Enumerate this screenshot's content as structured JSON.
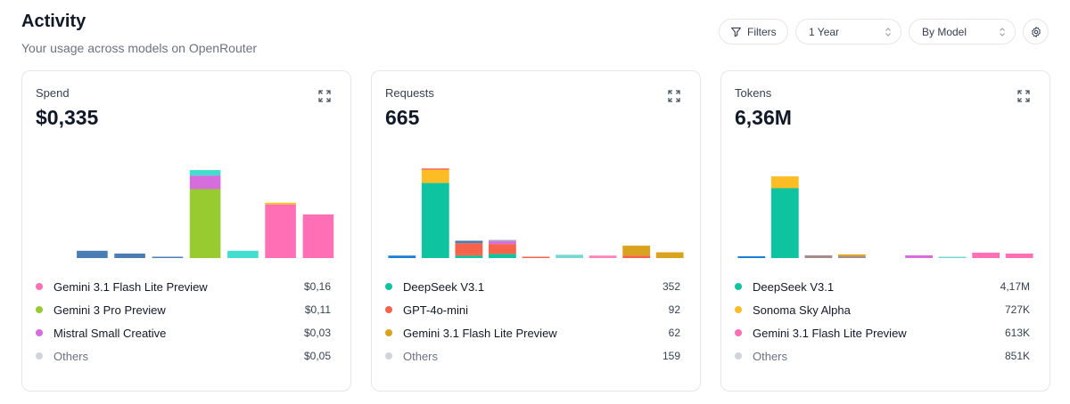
{
  "header": {
    "title": "Activity",
    "subtitle": "Your usage across models on OpenRouter"
  },
  "controls": {
    "filters_label": "Filters",
    "period_value": "1 Year",
    "group_value": "By Model"
  },
  "colors": {
    "gemini_flash_lite": "#ff6fb5",
    "gemini_3_pro": "#98cb2f",
    "mistral_small": "#d56edc",
    "deepseek": "#0ec39f",
    "gpt4o_mini": "#f6624a",
    "sonoma": "#fbbc24",
    "gemini_flash_lite_gold": "#d9a21f",
    "blue": "#4b7db4",
    "teal": "#43ddd0",
    "others": "#d1d5db"
  },
  "cards": [
    {
      "title": "Spend",
      "value": "$0,335",
      "legend": [
        {
          "name": "Gemini 3.1 Flash Lite Preview",
          "value": "$0,16",
          "color": "#ff6fb5"
        },
        {
          "name": "Gemini 3 Pro Preview",
          "value": "$0,11",
          "color": "#98cb2f"
        },
        {
          "name": "Mistral Small Creative",
          "value": "$0,03",
          "color": "#d56edc"
        },
        {
          "name": "Others",
          "value": "$0,05",
          "color": "#d1d5db"
        }
      ],
      "chart_data": {
        "type": "bar",
        "stacked": true,
        "max": 100,
        "bars": [
          [],
          [
            {
              "v": 8,
              "c": "#4b7db4"
            }
          ],
          [
            {
              "v": 5,
              "c": "#4b7db4"
            }
          ],
          [
            {
              "v": 1,
              "c": "#4b7db4"
            }
          ],
          [
            {
              "v": 76,
              "c": "#98cb2f"
            },
            {
              "v": 15,
              "c": "#d56edc"
            },
            {
              "v": 6,
              "c": "#43ddd0"
            }
          ],
          [
            {
              "v": 8,
              "c": "#43ddd0"
            }
          ],
          [
            {
              "v": 59,
              "c": "#ff6fb5"
            },
            {
              "v": 2,
              "c": "#fbbc24"
            }
          ],
          [
            {
              "v": 48,
              "c": "#ff6fb5"
            }
          ]
        ]
      }
    },
    {
      "title": "Requests",
      "value": "665",
      "legend": [
        {
          "name": "DeepSeek V3.1",
          "value": "352",
          "color": "#0ec39f"
        },
        {
          "name": "GPT-4o-mini",
          "value": "92",
          "color": "#f6624a"
        },
        {
          "name": "Gemini 3.1 Flash Lite Preview",
          "value": "62",
          "color": "#d9a21f"
        },
        {
          "name": "Others",
          "value": "159",
          "color": "#d1d5db"
        }
      ],
      "chart_data": {
        "type": "bar",
        "stacked": true,
        "max": 110,
        "bars": [
          [
            {
              "v": 3,
              "c": "#1c7fd6"
            }
          ],
          [
            {
              "v": 91,
              "c": "#0ec39f"
            },
            {
              "v": 16,
              "c": "#fbbc24"
            },
            {
              "v": 1,
              "c": "#f6624a"
            }
          ],
          [
            {
              "v": 3,
              "c": "#0ec39f"
            },
            {
              "v": 2,
              "c": "#f6624a"
            },
            {
              "v": 13,
              "c": "#f6624a"
            },
            {
              "v": 3,
              "c": "#4b7db4"
            }
          ],
          [
            {
              "v": 5,
              "c": "#0ec39f"
            },
            {
              "v": 2,
              "c": "#f6624a"
            },
            {
              "v": 10,
              "c": "#f6624a"
            },
            {
              "v": 3,
              "c": "#d56edc"
            },
            {
              "v": 2,
              "c": "#b0a4c8"
            }
          ],
          [
            {
              "v": 1,
              "c": "#f6624a"
            }
          ],
          [
            {
              "v": 4,
              "c": "#76d8d4"
            }
          ],
          [
            {
              "v": 3,
              "c": "#ff84b8"
            }
          ],
          [
            {
              "v": 3,
              "c": "#f6624a"
            },
            {
              "v": 12,
              "c": "#d9a21f"
            }
          ],
          [
            {
              "v": 7,
              "c": "#d9a21f"
            }
          ]
        ]
      }
    },
    {
      "title": "Tokens",
      "value": "6,36M",
      "legend": [
        {
          "name": "DeepSeek V3.1",
          "value": "4,17M",
          "color": "#0ec39f"
        },
        {
          "name": "Sonoma Sky Alpha",
          "value": "727K",
          "color": "#fbbc24"
        },
        {
          "name": "Gemini 3.1 Flash Lite Preview",
          "value": "613K",
          "color": "#ff6fb5"
        },
        {
          "name": "Others",
          "value": "851K",
          "color": "#d1d5db"
        }
      ],
      "chart_data": {
        "type": "bar",
        "stacked": true,
        "max": 100,
        "bars": [
          [
            {
              "v": 2,
              "c": "#1c7fd6"
            }
          ],
          [
            {
              "v": 77,
              "c": "#0ec39f"
            },
            {
              "v": 13,
              "c": "#fbbc24"
            }
          ],
          [
            {
              "v": 3,
              "c": "#a78a8a"
            }
          ],
          [
            {
              "v": 2,
              "c": "#a78a8a"
            },
            {
              "v": 2,
              "c": "#d9a21f"
            }
          ],
          [],
          [
            {
              "v": 3,
              "c": "#d56edc"
            }
          ],
          [
            {
              "v": 1,
              "c": "#76d8d4"
            }
          ],
          [
            {
              "v": 6,
              "c": "#ff6fb5"
            }
          ],
          [
            {
              "v": 5,
              "c": "#ff6fb5"
            }
          ]
        ]
      }
    }
  ]
}
